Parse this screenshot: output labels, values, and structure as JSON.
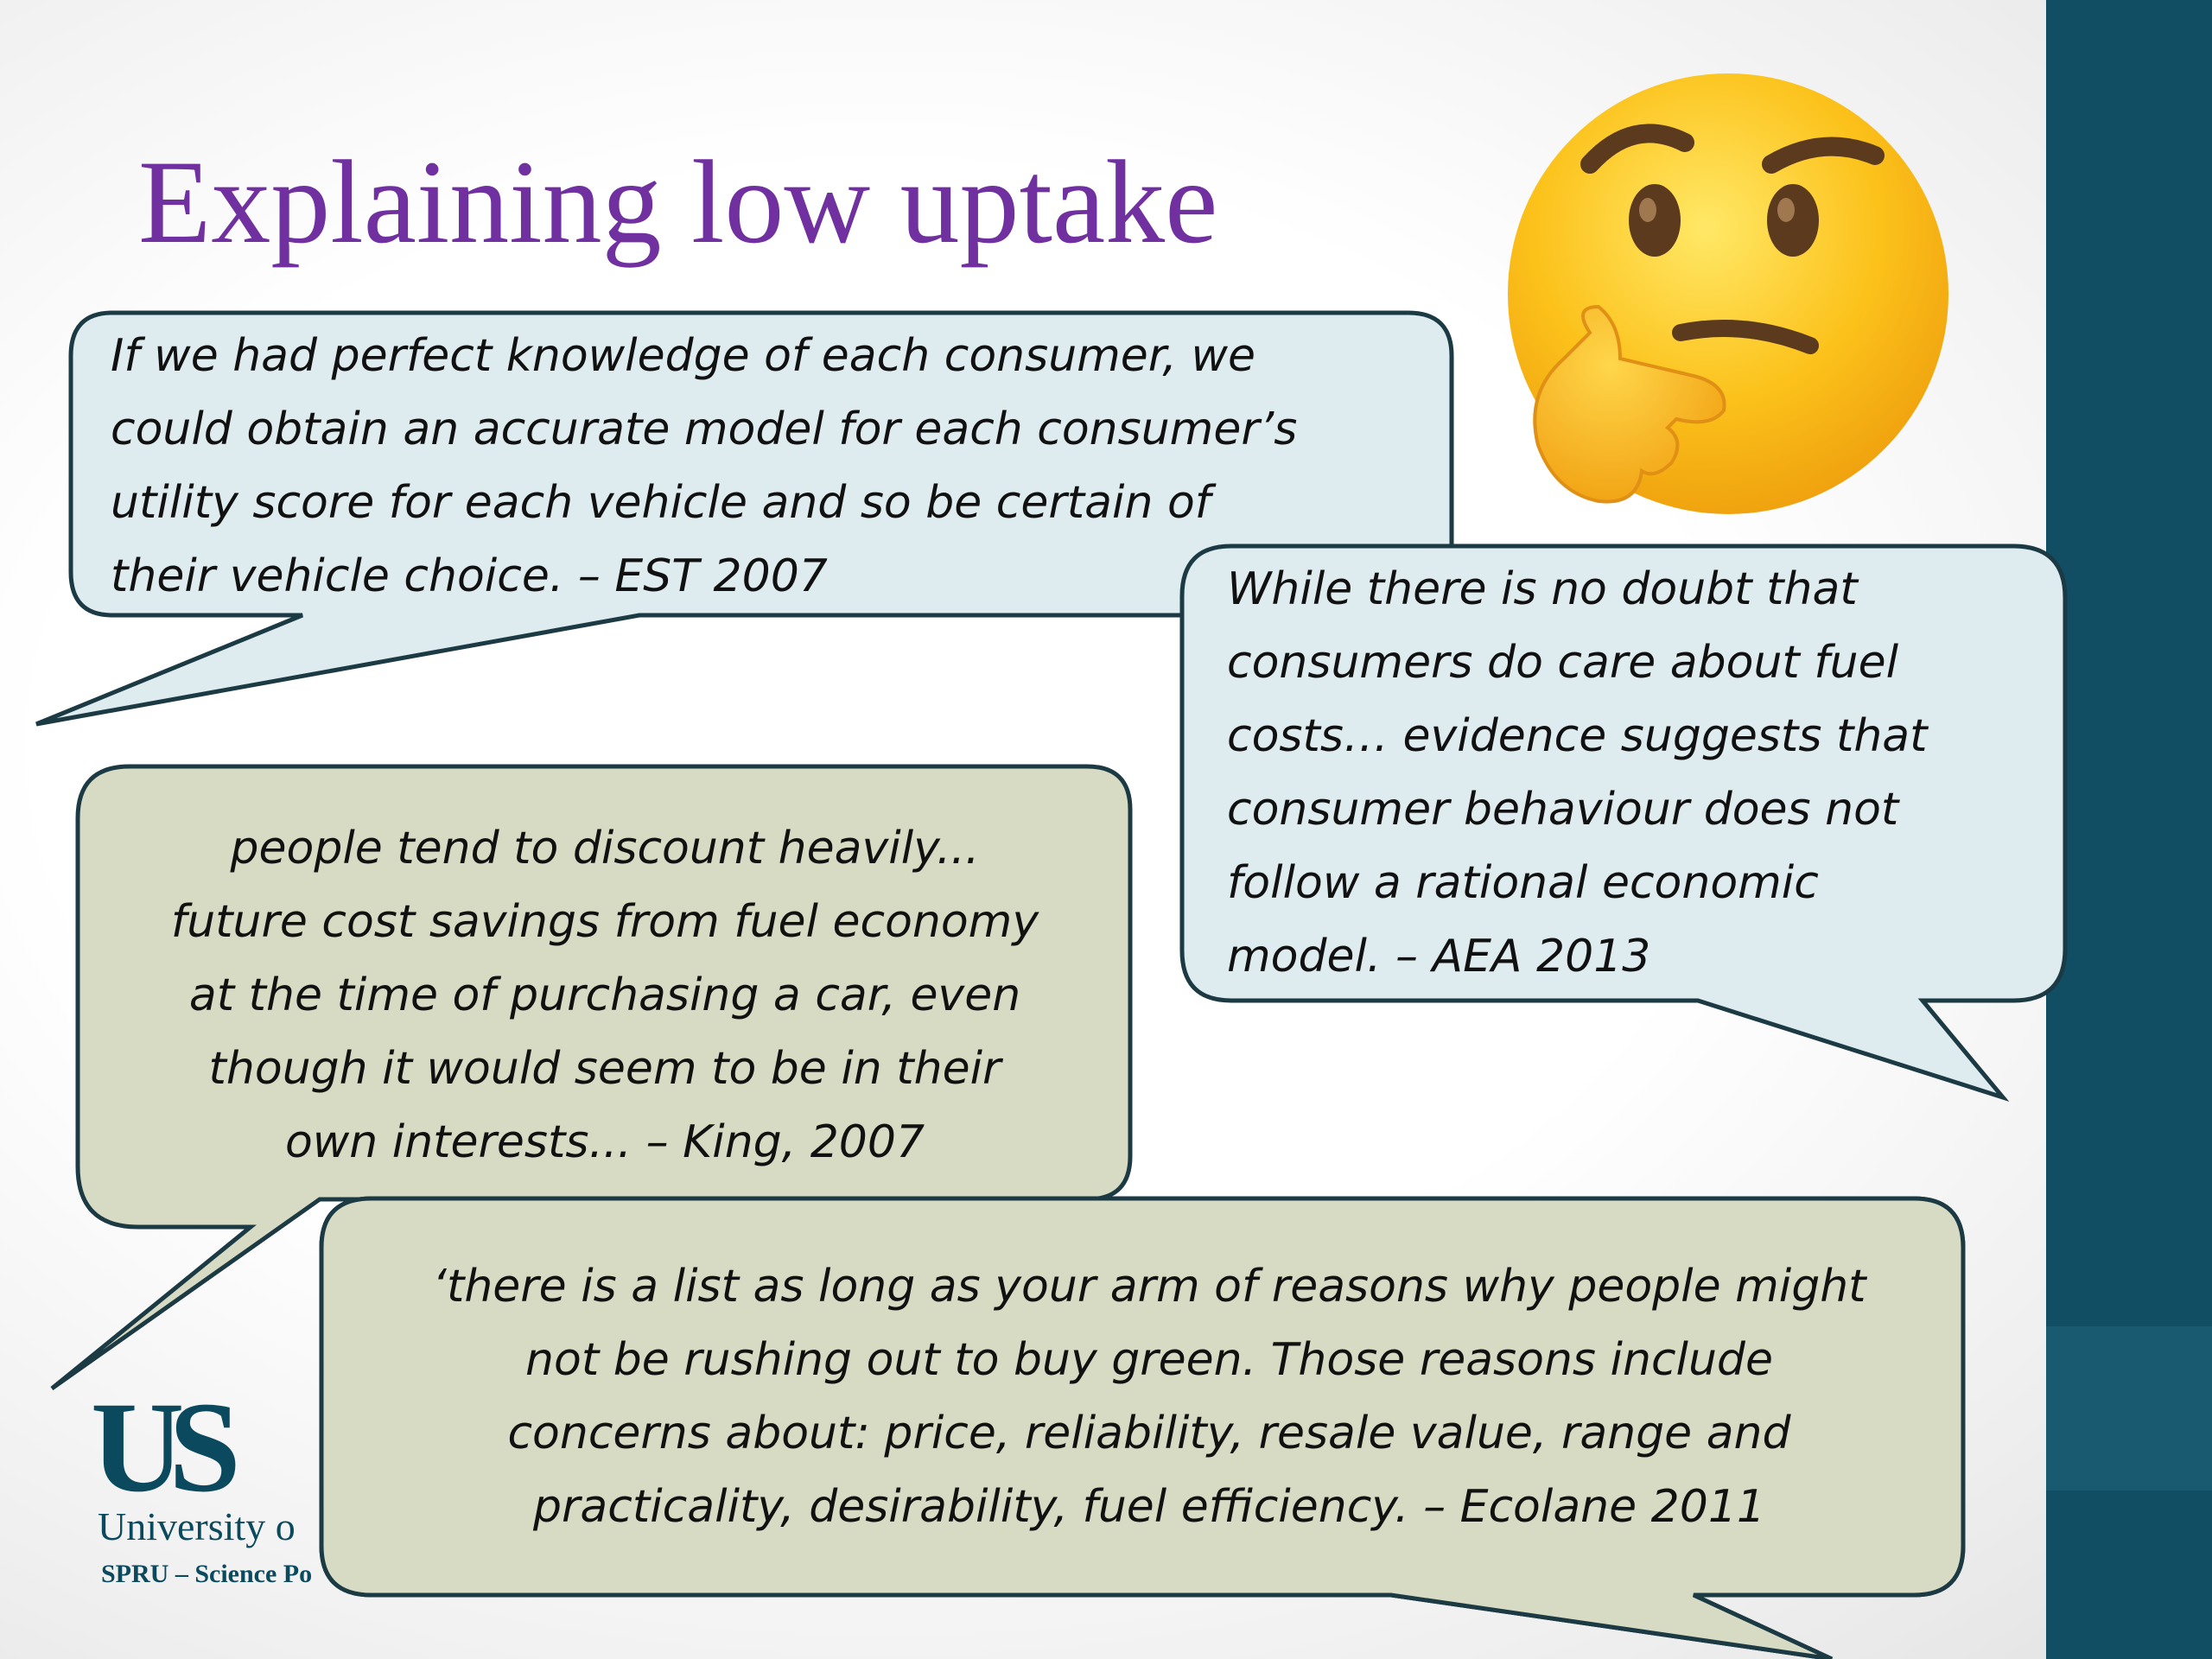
{
  "slide": {
    "title": "Explaining low uptake",
    "emoji_icon": "thinking-face-icon"
  },
  "quotes": [
    {
      "lines": [
        "If we had perfect knowledge of each consumer, we",
        "could obtain an accurate model for each consumer’s",
        "utility score for each vehicle and so be certain of",
        "their vehicle choice. – EST 2007"
      ],
      "color": "#deebef"
    },
    {
      "lines": [
        "While there is no doubt that",
        "consumers do care about fuel",
        "costs… evidence suggests that",
        "consumer behaviour does not",
        "follow a rational economic",
        "model. – AEA 2013"
      ],
      "color": "#deebef"
    },
    {
      "lines": [
        "people tend to discount heavily...",
        "future cost savings from fuel economy",
        "at the time of purchasing a car, even",
        "though it would seem to be in their",
        "own interests... – King, 2007"
      ],
      "color": "#d8dbc3"
    },
    {
      "lines": [
        "‘there is a list as long as your arm of reasons why people might",
        "not be rushing out to buy green. Those reasons include",
        "concerns about: price, reliability, resale value, range and",
        "practicality, desirability, fuel efficiency. – Ecolane 2011"
      ],
      "color": "#d8dbc3"
    }
  ],
  "logo": {
    "mark": "US",
    "university": "University o",
    "department": "SPRU – Science Po"
  },
  "colors": {
    "title": "#7030a0",
    "band": "#114e64",
    "bubble_border": "#1b3a44"
  }
}
